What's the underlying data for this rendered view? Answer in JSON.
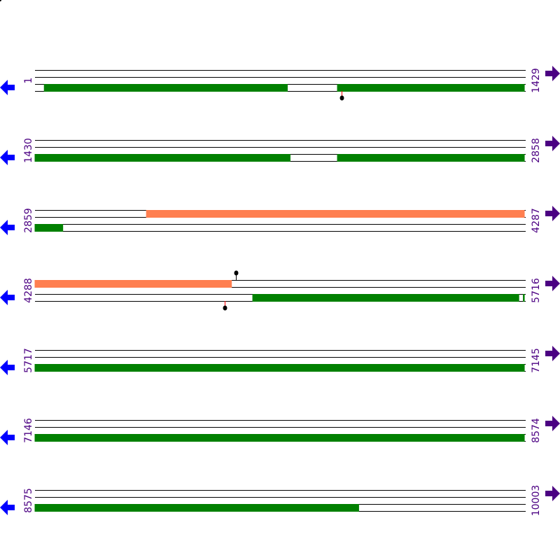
{
  "bp_per_row": 1429,
  "colors": {
    "cds": "#008000",
    "region": "#ff7f50",
    "line": "#000000",
    "label": "#4b0082",
    "left_arrow": "#0000ff",
    "right_arrow": "#4b0082",
    "marker_stem_bottom": "#ff0000",
    "marker_stem_top": "#000000"
  },
  "icons": {
    "left": "arrow-left-icon",
    "right": "arrow-right-icon"
  },
  "rows": [
    {
      "start": "1",
      "end": "1429",
      "features": [
        {
          "strand": "bottom",
          "type": "cds",
          "from": 28,
          "to": 738
        },
        {
          "strand": "bottom",
          "type": "cds",
          "from": 883,
          "to": 1429
        }
      ],
      "markers": [
        {
          "strand": "bottom",
          "pos": 895
        }
      ]
    },
    {
      "start": "1430",
      "end": "2858",
      "features": [
        {
          "strand": "bottom",
          "type": "cds",
          "from": 1430,
          "to": 2175
        },
        {
          "strand": "bottom",
          "type": "cds",
          "from": 2312,
          "to": 2858
        }
      ],
      "markers": []
    },
    {
      "start": "2859",
      "end": "4287",
      "features": [
        {
          "strand": "top",
          "type": "region",
          "from": 3184,
          "to": 4287
        },
        {
          "strand": "bottom",
          "type": "cds",
          "from": 2859,
          "to": 2941
        }
      ],
      "markers": []
    },
    {
      "start": "4288",
      "end": "5716",
      "features": [
        {
          "strand": "top",
          "type": "region",
          "from": 4288,
          "to": 4862
        },
        {
          "strand": "bottom",
          "type": "cds",
          "from": 4923,
          "to": 5700
        },
        {
          "strand": "bottom",
          "type": "cds",
          "from": 5712,
          "to": 5716
        }
      ],
      "markers": [
        {
          "strand": "top",
          "pos": 4874
        },
        {
          "strand": "bottom",
          "pos": 4841
        }
      ]
    },
    {
      "start": "5717",
      "end": "7145",
      "features": [
        {
          "strand": "bottom",
          "type": "cds",
          "from": 5717,
          "to": 7145
        }
      ],
      "markers": []
    },
    {
      "start": "7146",
      "end": "8574",
      "features": [
        {
          "strand": "bottom",
          "type": "cds",
          "from": 7146,
          "to": 8574
        }
      ],
      "markers": []
    },
    {
      "start": "8575",
      "end": "10003",
      "features": [
        {
          "strand": "bottom",
          "type": "cds",
          "from": 8575,
          "to": 9520
        }
      ],
      "markers": []
    }
  ]
}
